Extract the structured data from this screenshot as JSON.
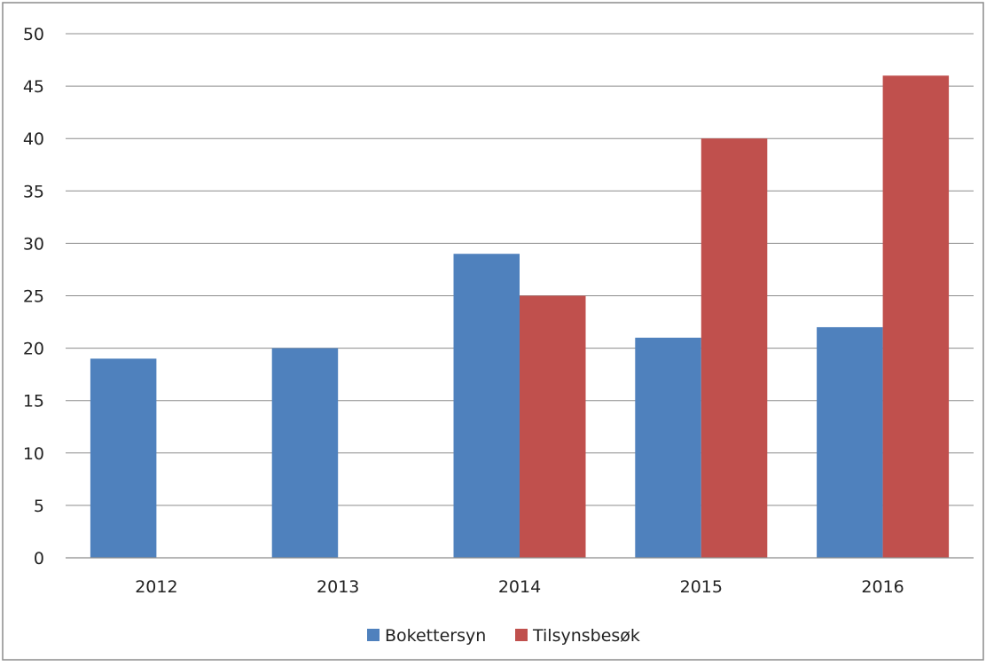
{
  "chart_data": {
    "type": "bar",
    "categories": [
      "2012",
      "2013",
      "2014",
      "2015",
      "2016"
    ],
    "series": [
      {
        "name": "Bokettersyn",
        "values": [
          19,
          20,
          29,
          21,
          22
        ],
        "color": "#4f81bd"
      },
      {
        "name": "Tilsynsbesøk",
        "values": [
          null,
          null,
          25,
          40,
          46
        ],
        "color": "#c0504d"
      }
    ],
    "y_ticks": [
      "0",
      "5",
      "10",
      "15",
      "20",
      "25",
      "30",
      "35",
      "40",
      "45",
      "50"
    ],
    "ylim": [
      0,
      50
    ],
    "grid": true,
    "legend_position": "bottom"
  }
}
